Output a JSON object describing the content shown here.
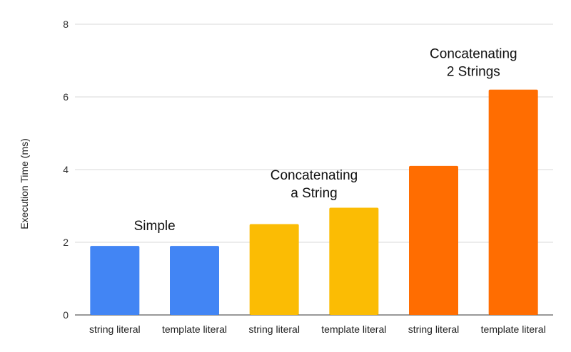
{
  "chart_data": {
    "type": "bar",
    "ylabel": "Execution Time (ms)",
    "ylim": [
      0,
      8
    ],
    "yticks": [
      0,
      2,
      4,
      6,
      8
    ],
    "grid": true,
    "bars": [
      {
        "category": "string literal",
        "value": 1.9,
        "color": "#4285F4",
        "group": 0
      },
      {
        "category": "template literal",
        "value": 1.9,
        "color": "#4285F4",
        "group": 0
      },
      {
        "category": "string literal",
        "value": 2.5,
        "color": "#FBBC04",
        "group": 1
      },
      {
        "category": "template literal",
        "value": 2.95,
        "color": "#FBBC04",
        "group": 1
      },
      {
        "category": "string literal",
        "value": 4.1,
        "color": "#FF6D01",
        "group": 2
      },
      {
        "category": "template literal",
        "value": 6.2,
        "color": "#FF6D01",
        "group": 2
      }
    ],
    "annotations": [
      {
        "lines": [
          "Simple"
        ],
        "group": 0,
        "value": 2.45
      },
      {
        "lines": [
          "Concatenating",
          "a String"
        ],
        "group": 1,
        "value": 3.35
      },
      {
        "lines": [
          "Concatenating",
          "2 Strings"
        ],
        "group": 2,
        "value": 6.7
      }
    ]
  }
}
